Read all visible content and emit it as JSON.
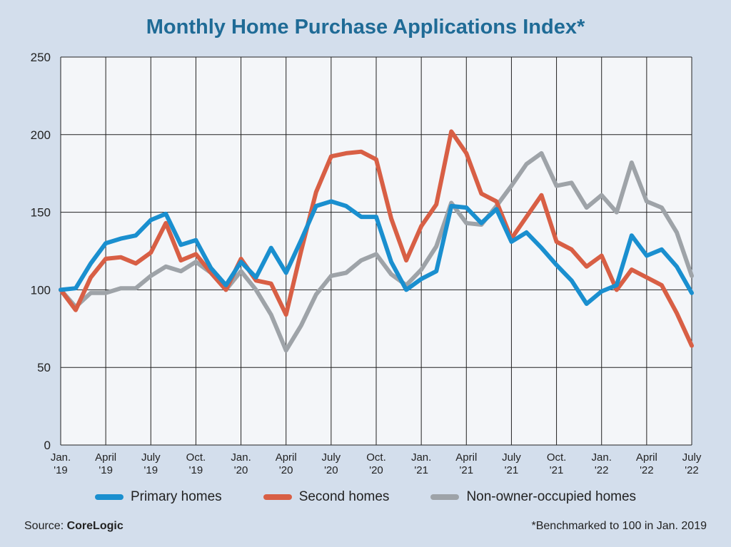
{
  "title": "Monthly Home Purchase Applications Index*",
  "source_label": "Source: ",
  "source_name": "CoreLogic",
  "footnote": "*Benchmarked to 100 in Jan. 2019",
  "chart_data": {
    "type": "line",
    "title": "Monthly Home Purchase Applications Index*",
    "xlabel": "",
    "ylabel": "",
    "ylim": [
      0,
      250
    ],
    "yticks": [
      0,
      50,
      100,
      150,
      200,
      250
    ],
    "grid": true,
    "legend_position": "bottom",
    "x": [
      "Jan. 2019",
      "Feb. 2019",
      "Mar. 2019",
      "Apr. 2019",
      "May 2019",
      "Jun. 2019",
      "Jul. 2019",
      "Aug. 2019",
      "Sep. 2019",
      "Oct. 2019",
      "Nov. 2019",
      "Dec. 2019",
      "Jan. 2020",
      "Feb. 2020",
      "Mar. 2020",
      "Apr. 2020",
      "May 2020",
      "Jun. 2020",
      "Jul. 2020",
      "Aug. 2020",
      "Sep. 2020",
      "Oct. 2020",
      "Nov. 2020",
      "Dec. 2020",
      "Jan. 2021",
      "Feb. 2021",
      "Mar. 2021",
      "Apr. 2021",
      "May 2021",
      "Jun. 2021",
      "Jul. 2021",
      "Aug. 2021",
      "Sep. 2021",
      "Oct. 2021",
      "Nov. 2021",
      "Dec. 2021",
      "Jan. 2022",
      "Feb. 2022",
      "Mar. 2022",
      "Apr. 2022",
      "May 2022",
      "Jun. 2022",
      "Jul. 2022"
    ],
    "xtick_labels": [
      {
        "index": 0,
        "line1": "Jan.",
        "line2": "'19"
      },
      {
        "index": 3,
        "line1": "April",
        "line2": "'19"
      },
      {
        "index": 6,
        "line1": "July",
        "line2": "'19"
      },
      {
        "index": 9,
        "line1": "Oct.",
        "line2": "'19"
      },
      {
        "index": 12,
        "line1": "Jan.",
        "line2": "'20"
      },
      {
        "index": 15,
        "line1": "April",
        "line2": "'20"
      },
      {
        "index": 18,
        "line1": "July",
        "line2": "'20"
      },
      {
        "index": 21,
        "line1": "Oct.",
        "line2": "'20"
      },
      {
        "index": 24,
        "line1": "Jan.",
        "line2": "'21"
      },
      {
        "index": 27,
        "line1": "April",
        "line2": "'21"
      },
      {
        "index": 30,
        "line1": "July",
        "line2": "'21"
      },
      {
        "index": 33,
        "line1": "Oct.",
        "line2": "'21"
      },
      {
        "index": 36,
        "line1": "Jan.",
        "line2": "'22"
      },
      {
        "index": 39,
        "line1": "April",
        "line2": "'22"
      },
      {
        "index": 42,
        "line1": "July",
        "line2": "'22"
      }
    ],
    "series": [
      {
        "name": "Non-owner-occupied homes",
        "color": "#9ea3a8",
        "values": [
          100,
          89,
          98,
          98,
          101,
          101,
          109,
          115,
          112,
          118,
          111,
          100,
          112,
          100,
          84,
          61,
          77,
          97,
          109,
          111,
          119,
          123,
          110,
          103,
          113,
          128,
          156,
          143,
          142,
          154,
          167,
          181,
          188,
          167,
          169,
          153,
          161,
          150,
          182,
          157,
          153,
          137,
          109
        ]
      },
      {
        "name": "Second homes",
        "color": "#d85f45",
        "values": [
          100,
          87,
          108,
          120,
          121,
          117,
          124,
          143,
          119,
          123,
          111,
          100,
          120,
          106,
          104,
          84,
          125,
          163,
          186,
          188,
          189,
          184,
          146,
          119,
          141,
          155,
          202,
          188,
          162,
          157,
          133,
          147,
          161,
          131,
          126,
          115,
          122,
          100,
          113,
          108,
          103,
          85,
          64
        ]
      },
      {
        "name": "Primary homes",
        "color": "#1a8fcf",
        "values": [
          100,
          101,
          117,
          130,
          133,
          135,
          145,
          149,
          129,
          132,
          114,
          103,
          118,
          108,
          127,
          111,
          132,
          154,
          157,
          154,
          147,
          147,
          118,
          100,
          107,
          112,
          154,
          153,
          143,
          152,
          131,
          137,
          127,
          116,
          106,
          91,
          99,
          103,
          135,
          122,
          126,
          115,
          98
        ]
      }
    ]
  }
}
